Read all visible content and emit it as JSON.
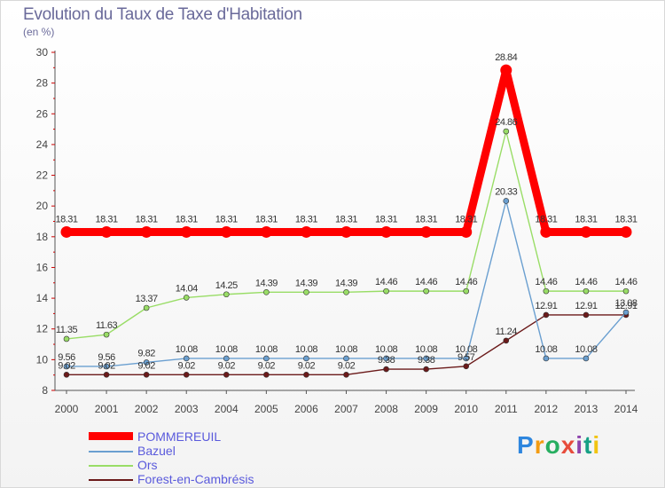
{
  "title": "Evolution du Taux de Taxe d'Habitation",
  "subtitle": "(en %)",
  "brand": "Proxiti",
  "colors": {
    "POMMEREUIL": "#ff0000",
    "Bazuel": "#6a9fd0",
    "Ors": "#99dd66",
    "Forest-en-Cambrésis": "#6b1a1a"
  },
  "chart_data": {
    "type": "line",
    "x": [
      "2000",
      "2001",
      "2002",
      "2003",
      "2004",
      "2005",
      "2006",
      "2007",
      "2008",
      "2009",
      "2010",
      "2011",
      "2012",
      "2013",
      "2014"
    ],
    "ylim": [
      8,
      30
    ],
    "yticks": [
      8,
      10,
      12,
      14,
      16,
      18,
      20,
      22,
      24,
      26,
      28,
      30
    ],
    "grid": false,
    "legend": "bottom-left",
    "series": [
      {
        "name": "POMMEREUIL",
        "values": [
          18.31,
          18.31,
          18.31,
          18.31,
          18.31,
          18.31,
          18.31,
          18.31,
          18.31,
          18.31,
          18.31,
          28.84,
          18.31,
          18.31,
          18.31
        ],
        "labels": [
          "18.31",
          "18.31",
          "18.31",
          "18.31",
          "18.31",
          "18.31",
          "18.31",
          "18.31",
          "18.31",
          "18.31",
          "18.31",
          "28.84",
          "18.31",
          "18.31",
          "18.31"
        ]
      },
      {
        "name": "Bazuel",
        "values": [
          9.56,
          9.56,
          9.82,
          10.08,
          10.08,
          10.08,
          10.08,
          10.08,
          10.08,
          10.08,
          10.08,
          20.33,
          10.08,
          10.08,
          13.08
        ],
        "labels": [
          "9.56",
          "9.56",
          "9.82",
          "10.08",
          "10.08",
          "10.08",
          "10.08",
          "10.08",
          "10.08",
          "10.08",
          "10.08",
          "20.33",
          "10.08",
          "10.08",
          "13.08"
        ]
      },
      {
        "name": "Ors",
        "values": [
          11.35,
          11.63,
          13.37,
          14.04,
          14.25,
          14.39,
          14.39,
          14.39,
          14.46,
          14.46,
          14.46,
          24.86,
          14.46,
          14.46,
          14.46
        ],
        "labels": [
          "11.35",
          "11.63",
          "13.37",
          "14.04",
          "14.25",
          "14.39",
          "14.39",
          "14.39",
          "14.46",
          "14.46",
          "14.46",
          "24.86",
          "14.46",
          "14.46",
          "14.46"
        ]
      },
      {
        "name": "Forest-en-Cambrésis",
        "values": [
          9.02,
          9.02,
          9.02,
          9.02,
          9.02,
          9.02,
          9.02,
          9.02,
          9.38,
          9.38,
          9.57,
          11.24,
          12.91,
          12.91,
          12.91
        ],
        "labels": [
          "9.02",
          "9.02",
          "9.02",
          "9.02",
          "9.02",
          "9.02",
          "9.02",
          "9.02",
          "9.38",
          "9.38",
          "9.57",
          "11.24",
          "12.91",
          "12.91",
          "12.91"
        ]
      }
    ]
  }
}
